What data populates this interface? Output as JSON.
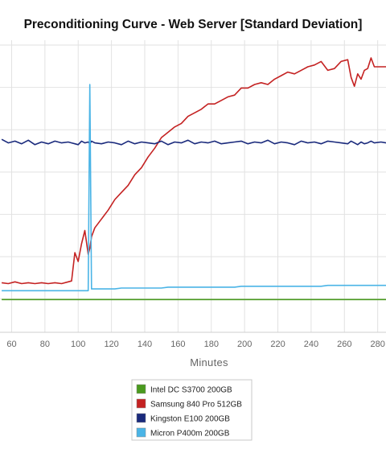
{
  "chart_data": {
    "type": "line",
    "title": "Preconditioning Curve - Web Server [Standard Deviation]",
    "xlabel": "Minutes",
    "ylabel": "",
    "xlim": [
      53,
      285
    ],
    "ylim": [
      0,
      330
    ],
    "x_ticks": [
      60,
      80,
      100,
      120,
      140,
      160,
      180,
      200,
      220,
      240,
      260,
      280
    ],
    "grid": true,
    "legend_position": "bottom",
    "x": [
      54,
      58,
      62,
      66,
      70,
      74,
      78,
      82,
      86,
      90,
      94,
      96,
      98,
      100,
      102,
      104,
      106,
      107,
      108,
      110,
      114,
      118,
      122,
      126,
      130,
      134,
      138,
      142,
      146,
      150,
      154,
      158,
      162,
      166,
      170,
      174,
      178,
      182,
      186,
      190,
      194,
      198,
      202,
      206,
      210,
      214,
      218,
      222,
      226,
      230,
      234,
      238,
      242,
      246,
      250,
      254,
      258,
      262,
      264,
      266,
      268,
      270,
      272,
      274,
      276,
      278,
      282,
      285
    ],
    "series": [
      {
        "name": "Intel DC S3700 200GB",
        "color": "#4a9a1e",
        "values": [
          37,
          37,
          37,
          37,
          37,
          37,
          37,
          37,
          37,
          37,
          37,
          37,
          37,
          37,
          37,
          37,
          37,
          37,
          37,
          37,
          37,
          37,
          37,
          37,
          37,
          37,
          37,
          37,
          37,
          37,
          37,
          37,
          37,
          37,
          37,
          37,
          37,
          37,
          37,
          37,
          37,
          37,
          37,
          37,
          37,
          37,
          37,
          37,
          37,
          37,
          37,
          37,
          37,
          37,
          37,
          37,
          37,
          37,
          37,
          37,
          37,
          37,
          37,
          37,
          37,
          37,
          37,
          37
        ]
      },
      {
        "name": "Samsung 840 Pro 512GB",
        "color": "#c42222",
        "values": [
          56,
          55,
          57,
          55,
          56,
          55,
          56,
          55,
          56,
          55,
          57,
          58,
          90,
          80,
          100,
          115,
          88,
          95,
          108,
          118,
          128,
          138,
          150,
          158,
          166,
          178,
          186,
          198,
          208,
          220,
          226,
          232,
          236,
          244,
          248,
          252,
          258,
          258,
          262,
          266,
          268,
          276,
          276,
          280,
          282,
          280,
          286,
          290,
          294,
          292,
          296,
          300,
          302,
          306,
          296,
          298,
          306,
          308,
          288,
          278,
          292,
          286,
          296,
          298,
          310,
          300,
          300,
          300
        ]
      },
      {
        "name": "Kingston E100 200GB",
        "color": "#1a2a7c",
        "values": [
          218,
          214,
          216,
          213,
          217,
          212,
          215,
          213,
          216,
          214,
          215,
          214,
          213,
          212,
          216,
          214,
          215,
          213,
          216,
          214,
          213,
          215,
          214,
          212,
          216,
          213,
          215,
          214,
          213,
          216,
          212,
          215,
          214,
          217,
          213,
          215,
          214,
          216,
          213,
          214,
          215,
          216,
          213,
          215,
          214,
          217,
          213,
          215,
          214,
          212,
          216,
          214,
          215,
          213,
          216,
          215,
          214,
          213,
          216,
          214,
          212,
          215,
          213,
          214,
          216,
          214,
          215,
          214
        ]
      },
      {
        "name": "Micron P400m 200GB",
        "color": "#4ab4e6",
        "values": [
          47,
          47,
          47,
          47,
          47,
          47,
          47,
          47,
          47,
          47,
          47,
          47,
          47,
          47,
          47,
          47,
          47,
          280,
          49,
          49,
          49,
          49,
          49,
          50,
          50,
          50,
          50,
          50,
          50,
          50,
          51,
          51,
          51,
          51,
          51,
          51,
          51,
          51,
          51,
          51,
          51,
          52,
          52,
          52,
          52,
          52,
          52,
          52,
          52,
          52,
          52,
          52,
          52,
          52,
          53,
          53,
          53,
          53,
          53,
          53,
          53,
          53,
          53,
          53,
          53,
          53,
          53,
          53
        ]
      }
    ]
  }
}
